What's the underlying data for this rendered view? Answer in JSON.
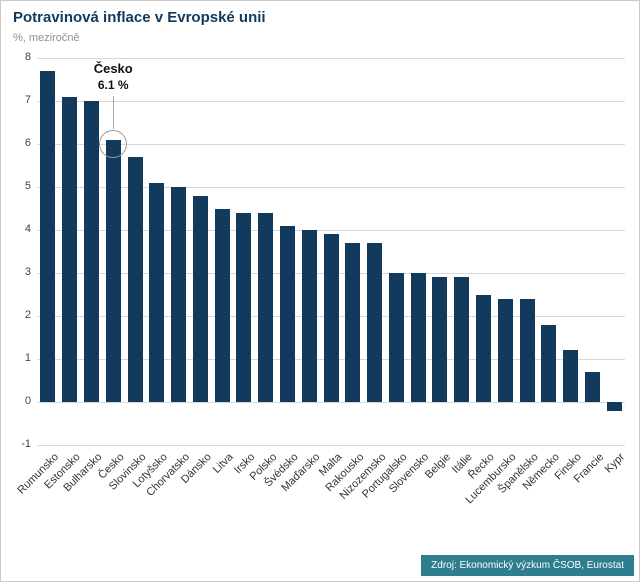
{
  "title": "Potravinová inflace v Evropské unii",
  "subtitle": "%, meziročně",
  "source": "Zdroj: Ekonomický výzkum ČSOB, Eurostat",
  "annotation": {
    "label": "Česko",
    "value": "6.1 %",
    "target": "Česko"
  },
  "colors": {
    "bar": "#123a5c",
    "title_text": "#123a5c",
    "grid": "#d8d8d8",
    "annotation_circle": "#9a9a9a",
    "source_bg": "#2e7e8f",
    "source_text": "#ffffff"
  },
  "chart_data": {
    "type": "bar",
    "title": "Potravinová inflace v Evropské unii",
    "ylabel": "%, meziročně",
    "xlabel": "",
    "ylim": [
      -1,
      8
    ],
    "yticks": [
      8,
      7,
      6,
      5,
      4,
      3,
      2,
      1,
      0,
      -1
    ],
    "grid": true,
    "legend": false,
    "categories": [
      "Rumunsko",
      "Estonsko",
      "Bulharsko",
      "Česko",
      "Slovinsko",
      "Lotyšsko",
      "Chorvatsko",
      "Dánsko",
      "Litva",
      "Irsko",
      "Polsko",
      "Švédsko",
      "Maďarsko",
      "Malta",
      "Rakousko",
      "Nizozemsko",
      "Portugalsko",
      "Slovensko",
      "Belgie",
      "Itálie",
      "Řecko",
      "Lucembursko",
      "Španělsko",
      "Německo",
      "Finsko",
      "Francie",
      "Kypr"
    ],
    "values": [
      7.7,
      7.1,
      7.0,
      6.1,
      5.7,
      5.1,
      5.0,
      4.8,
      4.5,
      4.4,
      4.4,
      4.1,
      4.0,
      3.9,
      3.7,
      3.7,
      3.0,
      3.0,
      2.9,
      2.9,
      2.5,
      2.4,
      2.4,
      1.8,
      1.2,
      0.7,
      -0.2
    ]
  }
}
